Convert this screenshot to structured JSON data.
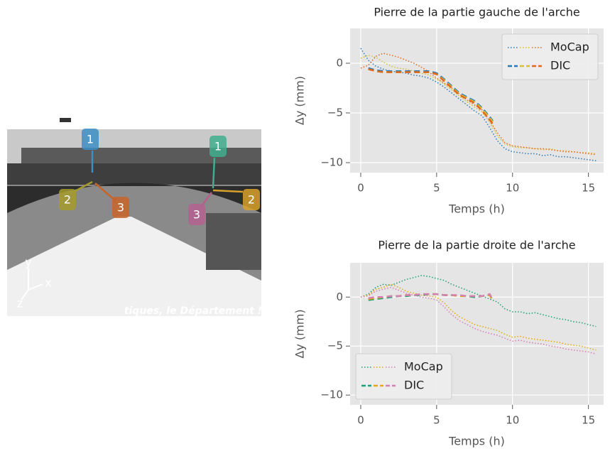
{
  "photo": {
    "markers": [
      "1",
      "2",
      "3",
      "1",
      "2",
      "3"
    ],
    "axes": [
      "x",
      "y",
      "z"
    ],
    "banner": "tiques, le Département !"
  },
  "chart_data": [
    {
      "type": "line",
      "title": "Pierre de la partie gauche de l'arche",
      "xlabel": "Temps (h)",
      "ylabel": "Δy (mm)",
      "xlim": [
        -0.7,
        16
      ],
      "ylim": [
        -11,
        3.5
      ],
      "xticks": [
        0,
        5,
        10,
        15
      ],
      "yticks": [
        {
          "value": -10,
          "label": "−10"
        },
        {
          "value": -5,
          "label": "−5"
        },
        0
      ],
      "grid": true,
      "legend": "upper right",
      "series": [
        {
          "name": "MoCap",
          "style": "dotted",
          "x": [
            0,
            0.5,
            1,
            1.5,
            2,
            2.5,
            3,
            3.5,
            4,
            4.5,
            5,
            5.5,
            6,
            6.5,
            7,
            7.5,
            8,
            8.5,
            9,
            9.5,
            10,
            10.5,
            11,
            11.5,
            12,
            12.5,
            13,
            13.5,
            14,
            14.5,
            15,
            15.5
          ],
          "lines": [
            {
              "color": "#2a7ab9",
              "values": [
                1.5,
                0.3,
                -0.3,
                -0.6,
                -0.8,
                -0.9,
                -1.0,
                -1.2,
                -1.3,
                -1.5,
                -1.9,
                -2.4,
                -3.0,
                -3.6,
                -4.2,
                -4.8,
                -5.3,
                -6.5,
                -7.8,
                -8.6,
                -8.9,
                -9.0,
                -9.1,
                -9.1,
                -9.3,
                -9.2,
                -9.4,
                -9.4,
                -9.5,
                -9.6,
                -9.7,
                -9.8
              ]
            },
            {
              "color": "#d8c12c",
              "values": [
                0.5,
                0.8,
                0.6,
                0.1,
                -0.3,
                -0.5,
                -0.6,
                -0.8,
                -1.0,
                -1.2,
                -1.6,
                -2.1,
                -2.7,
                -3.3,
                -3.9,
                -4.4,
                -4.9,
                -6.0,
                -7.3,
                -8.1,
                -8.4,
                -8.5,
                -8.5,
                -8.6,
                -8.7,
                -8.6,
                -8.8,
                -8.8,
                -8.9,
                -9.0,
                -9.0,
                -9.1
              ]
            },
            {
              "color": "#e0691d",
              "values": [
                -0.5,
                -0.2,
                0.7,
                1.0,
                0.8,
                0.6,
                0.3,
                0.0,
                -0.4,
                -0.9,
                -1.5,
                -2.0,
                -2.5,
                -3.1,
                -3.7,
                -4.2,
                -4.7,
                -5.8,
                -7.0,
                -8.0,
                -8.3,
                -8.4,
                -8.5,
                -8.6,
                -8.6,
                -8.7,
                -8.8,
                -8.9,
                -8.9,
                -9.0,
                -9.1,
                -9.2
              ]
            }
          ]
        },
        {
          "name": "DIC",
          "style": "dashed",
          "x": [
            0.5,
            1,
            1.5,
            2,
            2.5,
            3,
            3.5,
            4,
            4.5,
            5,
            5.5,
            6,
            6.5,
            7,
            7.5,
            8,
            8.5,
            8.7
          ],
          "lines": [
            {
              "color": "#2a7ab9",
              "values": [
                -0.5,
                -0.7,
                -0.8,
                -0.8,
                -0.8,
                -0.8,
                -0.8,
                -0.8,
                -0.8,
                -1.0,
                -1.6,
                -2.3,
                -3.0,
                -3.4,
                -3.8,
                -4.5,
                -5.4,
                -5.8
              ]
            },
            {
              "color": "#d8c12c",
              "values": [
                -0.6,
                -0.8,
                -0.9,
                -0.9,
                -0.9,
                -0.9,
                -0.9,
                -0.9,
                -0.9,
                -1.1,
                -1.7,
                -2.4,
                -3.1,
                -3.5,
                -3.9,
                -4.6,
                -5.5,
                -5.9
              ]
            },
            {
              "color": "#e0691d",
              "values": [
                -0.6,
                -0.8,
                -0.9,
                -0.9,
                -0.9,
                -0.9,
                -0.9,
                -0.9,
                -0.9,
                -1.1,
                -1.8,
                -2.5,
                -3.2,
                -3.6,
                -4.0,
                -4.8,
                -5.7,
                -6.1
              ]
            }
          ]
        }
      ]
    },
    {
      "type": "line",
      "title": "Pierre de la partie droite de l'arche",
      "xlabel": "Temps (h)",
      "ylabel": "Δy (mm)",
      "xlim": [
        -0.7,
        16
      ],
      "ylim": [
        -11,
        3.5
      ],
      "xticks": [
        0,
        5,
        10,
        15
      ],
      "yticks": [
        {
          "value": -10,
          "label": "−10"
        },
        {
          "value": -5,
          "label": "−5"
        },
        0
      ],
      "grid": true,
      "legend": "lower left",
      "series": [
        {
          "name": "MoCap",
          "style": "dotted",
          "x": [
            0,
            0.5,
            1,
            1.5,
            2,
            2.5,
            3,
            3.5,
            4,
            4.5,
            5,
            5.5,
            6,
            6.5,
            7,
            7.5,
            8,
            8.5,
            9,
            9.5,
            10,
            10.5,
            11,
            11.5,
            12,
            12.5,
            13,
            13.5,
            14,
            14.5,
            15,
            15.5
          ],
          "lines": [
            {
              "color": "#1b9e77",
              "values": [
                0,
                0.3,
                1.0,
                1.3,
                1.2,
                1.5,
                1.8,
                2.0,
                2.2,
                2.1,
                1.9,
                1.7,
                1.3,
                1.0,
                0.7,
                0.4,
                0.1,
                -0.2,
                -0.5,
                -1.2,
                -1.5,
                -1.5,
                -1.7,
                -1.6,
                -1.8,
                -2.0,
                -2.2,
                -2.3,
                -2.5,
                -2.6,
                -2.8,
                -3.0
              ]
            },
            {
              "color": "#e6ab02",
              "values": [
                0,
                0.2,
                0.8,
                1.0,
                1.3,
                1.0,
                0.6,
                0.4,
                0.2,
                0.1,
                0.0,
                -0.6,
                -1.4,
                -2.0,
                -2.4,
                -2.8,
                -3.0,
                -3.2,
                -3.4,
                -3.8,
                -4.1,
                -4.0,
                -4.2,
                -4.3,
                -4.4,
                -4.5,
                -4.6,
                -4.8,
                -4.9,
                -5.0,
                -5.2,
                -5.4
              ]
            },
            {
              "color": "#d47fb4",
              "values": [
                0,
                0.1,
                0.6,
                0.8,
                1.0,
                0.7,
                0.4,
                0.2,
                0.0,
                -0.1,
                -0.3,
                -1.0,
                -1.8,
                -2.4,
                -2.8,
                -3.2,
                -3.5,
                -3.7,
                -3.9,
                -4.2,
                -4.5,
                -4.4,
                -4.6,
                -4.7,
                -4.8,
                -5.0,
                -5.1,
                -5.3,
                -5.4,
                -5.5,
                -5.6,
                -5.8
              ]
            }
          ]
        },
        {
          "name": "DIC",
          "style": "dashed",
          "x": [
            0.5,
            1,
            1.5,
            2,
            2.5,
            3,
            3.5,
            4,
            4.5,
            5,
            5.5,
            6,
            6.5,
            7,
            7.5,
            8,
            8.5,
            8.7
          ],
          "lines": [
            {
              "color": "#1b9e77",
              "values": [
                -0.3,
                -0.2,
                -0.1,
                0.0,
                0.1,
                0.1,
                0.2,
                0.2,
                0.3,
                0.3,
                0.2,
                0.2,
                0.1,
                0.1,
                0.0,
                0.1,
                0.2,
                -0.4
              ]
            },
            {
              "color": "#e6ab02",
              "values": [
                -0.2,
                -0.1,
                0.0,
                0.1,
                0.1,
                0.2,
                0.2,
                0.3,
                0.3,
                0.3,
                0.2,
                0.2,
                0.1,
                0.1,
                0.1,
                0.1,
                0.2,
                -0.4
              ]
            },
            {
              "color": "#d47fb4",
              "values": [
                -0.1,
                0.0,
                0.0,
                0.1,
                0.1,
                0.2,
                0.2,
                0.3,
                0.3,
                0.3,
                0.2,
                0.2,
                0.2,
                0.1,
                0.1,
                0.1,
                0.3,
                -0.3
              ]
            }
          ]
        }
      ]
    }
  ]
}
